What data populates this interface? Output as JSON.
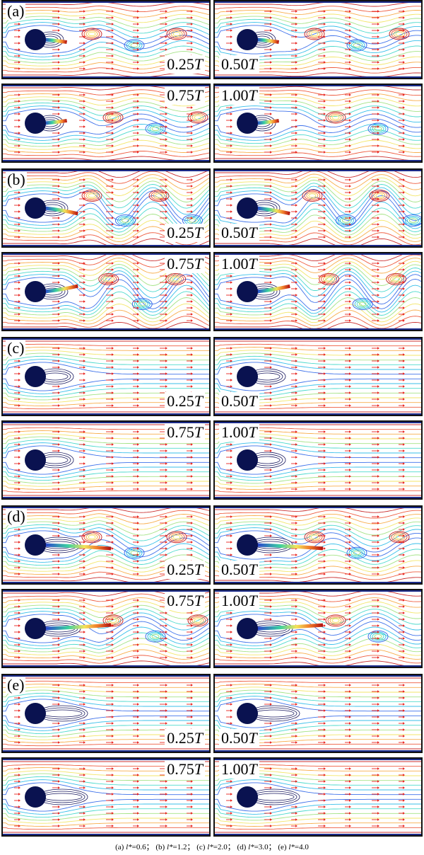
{
  "colors": {
    "cylinder": "#0a1250",
    "arrow": "#e8231f",
    "wall": "#1a2a8a",
    "contour_palette": [
      "#1b2aa8",
      "#2a63e8",
      "#22b8e8",
      "#3ad6c8",
      "#9be07a",
      "#f2e35a",
      "#f7a53a",
      "#ec4a2a",
      "#c41818"
    ]
  },
  "cases": [
    {
      "id": "a",
      "label": "(a)",
      "rod_length": 0.6,
      "wake": "short",
      "panels": [
        {
          "time": "0.25",
          "unit": "T",
          "pos": "br",
          "phase": 0
        },
        {
          "time": "0.50",
          "unit": "T",
          "pos": "bl",
          "phase": 1
        },
        {
          "time": "0.75",
          "unit": "T",
          "pos": "tr",
          "phase": 2
        },
        {
          "time": "1.00",
          "unit": "T",
          "pos": "tl",
          "phase": 3
        }
      ]
    },
    {
      "id": "b",
      "label": "(b)",
      "rod_length": 1.2,
      "wake": "shedding",
      "panels": [
        {
          "time": "0.25",
          "unit": "T",
          "pos": "br",
          "phase": 0
        },
        {
          "time": "0.50",
          "unit": "T",
          "pos": "bl",
          "phase": 1
        },
        {
          "time": "0.75",
          "unit": "T",
          "pos": "tr",
          "phase": 2
        },
        {
          "time": "1.00",
          "unit": "T",
          "pos": "tl",
          "phase": 3
        }
      ]
    },
    {
      "id": "c",
      "label": "(c)",
      "rod_length": 2.0,
      "wake": "steady",
      "panels": [
        {
          "time": "0.25",
          "unit": "T",
          "pos": "br",
          "phase": 0
        },
        {
          "time": "0.50",
          "unit": "T",
          "pos": "bl",
          "phase": 1
        },
        {
          "time": "0.75",
          "unit": "T",
          "pos": "tr",
          "phase": 2
        },
        {
          "time": "1.00",
          "unit": "T",
          "pos": "tl",
          "phase": 3
        }
      ]
    },
    {
      "id": "d",
      "label": "(d)",
      "rod_length": 3.0,
      "wake": "flapping",
      "panels": [
        {
          "time": "0.25",
          "unit": "T",
          "pos": "br",
          "phase": 0
        },
        {
          "time": "0.50",
          "unit": "T",
          "pos": "bl",
          "phase": 1
        },
        {
          "time": "0.75",
          "unit": "T",
          "pos": "tr",
          "phase": 2
        },
        {
          "time": "1.00",
          "unit": "T",
          "pos": "tl",
          "phase": 3
        }
      ]
    },
    {
      "id": "e",
      "label": "(e)",
      "rod_length": 4.0,
      "wake": "steady",
      "panels": [
        {
          "time": "0.25",
          "unit": "T",
          "pos": "br",
          "phase": 0
        },
        {
          "time": "0.50",
          "unit": "T",
          "pos": "bl",
          "phase": 1
        },
        {
          "time": "0.75",
          "unit": "T",
          "pos": "tr",
          "phase": 2
        },
        {
          "time": "1.00",
          "unit": "T",
          "pos": "tl",
          "phase": 3
        }
      ]
    }
  ],
  "caption": {
    "items": [
      {
        "tag": "(a)",
        "var": "l*",
        "value": "=0.6"
      },
      {
        "tag": "(b)",
        "var": "l*",
        "value": "=1.2"
      },
      {
        "tag": "(c)",
        "var": "l*",
        "value": "=2.0"
      },
      {
        "tag": "(d)",
        "var": "l*",
        "value": "=3.0"
      },
      {
        "tag": "(e)",
        "var": "l*",
        "value": "=4.0"
      }
    ],
    "separator": "；"
  }
}
